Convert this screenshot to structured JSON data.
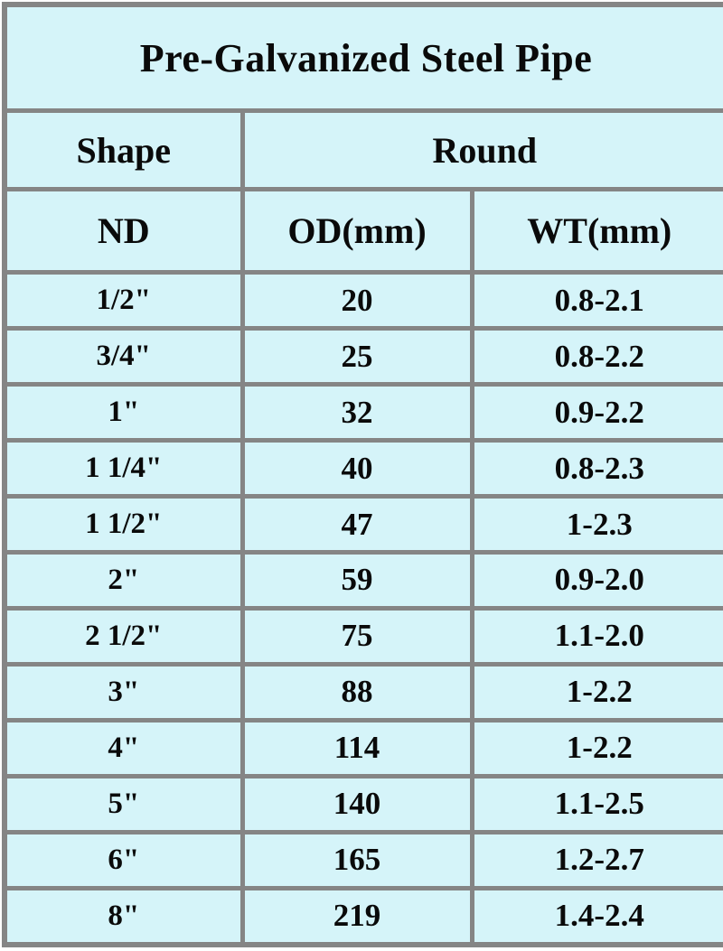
{
  "colors": {
    "cell_background": "#d5f4f9",
    "grid_border": "#858585",
    "text": "#0a0a0a",
    "page_background": "#ffffff"
  },
  "table": {
    "title": "Pre-Galvanized Steel Pipe",
    "shape_label": "Shape",
    "shape_value": "Round",
    "columns": [
      "ND",
      "OD(mm)",
      "WT(mm)"
    ],
    "rows": [
      {
        "nd": "1/2\"",
        "od": "20",
        "wt": "0.8-2.1"
      },
      {
        "nd": "3/4\"",
        "od": "25",
        "wt": "0.8-2.2"
      },
      {
        "nd": "1\"",
        "od": "32",
        "wt": "0.9-2.2"
      },
      {
        "nd": "1 1/4\"",
        "od": "40",
        "wt": "0.8-2.3"
      },
      {
        "nd": "1 1/2\"",
        "od": "47",
        "wt": "1-2.3"
      },
      {
        "nd": "2\"",
        "od": "59",
        "wt": "0.9-2.0"
      },
      {
        "nd": "2 1/2\"",
        "od": "75",
        "wt": "1.1-2.0"
      },
      {
        "nd": "3\"",
        "od": "88",
        "wt": "1-2.2"
      },
      {
        "nd": "4\"",
        "od": "114",
        "wt": "1-2.2"
      },
      {
        "nd": "5\"",
        "od": "140",
        "wt": "1.1-2.5"
      },
      {
        "nd": "6\"",
        "od": "165",
        "wt": "1.2-2.7"
      },
      {
        "nd": "8\"",
        "od": "219",
        "wt": "1.4-2.4"
      }
    ]
  }
}
